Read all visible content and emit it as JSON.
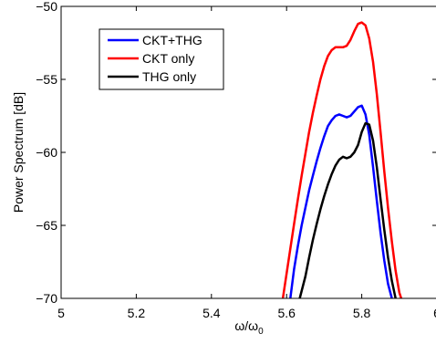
{
  "chart_data": {
    "type": "line",
    "title": "",
    "xlabel": "ω/ω",
    "xlabel_sub": "0",
    "ylabel": "Power Spectrum [dB]",
    "xlim": [
      5,
      6
    ],
    "ylim": [
      -70,
      -50
    ],
    "x_ticks": [
      5,
      5.2,
      5.4,
      5.6,
      5.8,
      6
    ],
    "x_tick_labels": [
      "5",
      "5.2",
      "5.4",
      "5.6",
      "5.8",
      "6"
    ],
    "y_ticks": [
      -70,
      -65,
      -60,
      -55,
      -50
    ],
    "y_tick_labels": [
      "−70",
      "−65",
      "−60",
      "−55",
      "−50"
    ],
    "grid": false,
    "legend_position": "top-left",
    "series": [
      {
        "name": "CKT+THG",
        "color": "#0000ff",
        "x": [
          5.61,
          5.62,
          5.63,
          5.64,
          5.65,
          5.66,
          5.67,
          5.68,
          5.69,
          5.7,
          5.71,
          5.72,
          5.73,
          5.74,
          5.75,
          5.76,
          5.77,
          5.78,
          5.79,
          5.8,
          5.81,
          5.82,
          5.83,
          5.84,
          5.85,
          5.86,
          5.87,
          5.88
        ],
        "y": [
          -70,
          -68.0,
          -66.4,
          -65.0,
          -63.8,
          -62.6,
          -61.6,
          -60.6,
          -59.7,
          -58.9,
          -58.2,
          -57.8,
          -57.5,
          -57.4,
          -57.5,
          -57.6,
          -57.5,
          -57.2,
          -56.9,
          -56.8,
          -57.4,
          -58.8,
          -61.0,
          -63.3,
          -65.5,
          -67.4,
          -69.0,
          -70
        ]
      },
      {
        "name": "CKT only",
        "color": "#ff0000",
        "x": [
          5.59,
          5.6,
          5.61,
          5.62,
          5.63,
          5.64,
          5.65,
          5.66,
          5.67,
          5.68,
          5.69,
          5.7,
          5.71,
          5.72,
          5.73,
          5.74,
          5.75,
          5.76,
          5.77,
          5.78,
          5.79,
          5.8,
          5.81,
          5.82,
          5.83,
          5.84,
          5.85,
          5.86,
          5.87,
          5.88,
          5.89,
          5.9,
          5.905
        ],
        "y": [
          -70,
          -68.3,
          -66.6,
          -64.9,
          -63.2,
          -61.6,
          -60.1,
          -58.6,
          -57.3,
          -56.1,
          -55.0,
          -54.1,
          -53.4,
          -53.0,
          -52.8,
          -52.8,
          -52.8,
          -52.7,
          -52.3,
          -51.7,
          -51.2,
          -51.1,
          -51.3,
          -52.2,
          -53.8,
          -56.0,
          -58.6,
          -61.3,
          -63.8,
          -66.1,
          -68.1,
          -69.6,
          -70
        ]
      },
      {
        "name": "THG only",
        "color": "#000000",
        "x": [
          5.635,
          5.65,
          5.66,
          5.67,
          5.68,
          5.69,
          5.7,
          5.71,
          5.72,
          5.73,
          5.74,
          5.75,
          5.76,
          5.77,
          5.78,
          5.79,
          5.8,
          5.81,
          5.82,
          5.83,
          5.84,
          5.85,
          5.86,
          5.87,
          5.88,
          5.89
        ],
        "y": [
          -70,
          -68.5,
          -67.2,
          -66.0,
          -64.9,
          -63.9,
          -63.0,
          -62.2,
          -61.5,
          -60.9,
          -60.5,
          -60.3,
          -60.4,
          -60.3,
          -60.0,
          -59.5,
          -58.6,
          -58.0,
          -58.1,
          -59.2,
          -61.0,
          -63.2,
          -65.3,
          -67.2,
          -68.8,
          -70
        ]
      }
    ]
  }
}
